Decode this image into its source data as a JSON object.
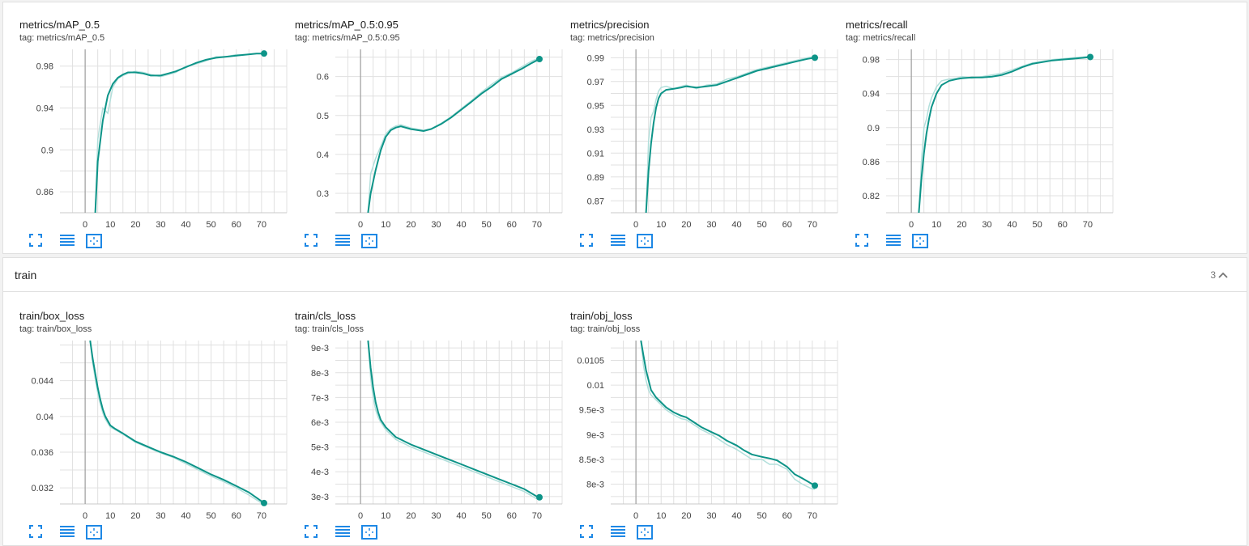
{
  "colors": {
    "accent": "#0d9488",
    "smooth_light": "#b2dfdb",
    "grid": "#e0e0e0",
    "tool_blue": "#1e88e5"
  },
  "train_group": {
    "title": "train",
    "count": "3"
  },
  "tool_icons": [
    "fit-domain-icon",
    "toggle-log-icon",
    "expand-icon"
  ],
  "chart_data": [
    {
      "type": "line",
      "title": "metrics/mAP_0.5",
      "tag": "tag: metrics/mAP_0.5",
      "x": [
        4,
        5,
        7,
        9,
        11,
        13,
        15,
        17,
        20,
        23,
        26,
        30,
        33,
        36,
        40,
        44,
        48,
        52,
        56,
        60,
        64,
        68,
        71
      ],
      "values": [
        0.84,
        0.889,
        0.928,
        0.952,
        0.963,
        0.969,
        0.972,
        0.974,
        0.974,
        0.973,
        0.971,
        0.971,
        0.973,
        0.975,
        0.979,
        0.983,
        0.986,
        0.988,
        0.989,
        0.99,
        0.991,
        0.992,
        0.992
      ],
      "raw": [
        0.84,
        0.91,
        0.94,
        0.935,
        0.96,
        0.968,
        0.971,
        0.973,
        0.975,
        0.974,
        0.972,
        0.97,
        0.972,
        0.974,
        0.98,
        0.982,
        0.985,
        0.989,
        0.989,
        0.991,
        0.991,
        0.992,
        0.992
      ],
      "ylim": [
        0.84,
        0.996
      ],
      "xlim": [
        -10,
        80
      ],
      "yticks": [
        0.86,
        0.9,
        0.94,
        0.98
      ],
      "yticklabels": [
        "0.86",
        "0.9",
        "0.94",
        "0.98"
      ],
      "xticks": [
        0,
        10,
        20,
        30,
        40,
        50,
        60,
        70
      ],
      "grid": true
    },
    {
      "type": "line",
      "title": "metrics/mAP_0.5:0.95",
      "tag": "tag: metrics/mAP_0.5:0.95",
      "x": [
        3,
        4,
        6,
        8,
        10,
        12,
        14,
        16,
        20,
        25,
        28,
        32,
        36,
        40,
        44,
        48,
        52,
        56,
        60,
        64,
        68,
        71
      ],
      "values": [
        0.25,
        0.3,
        0.36,
        0.41,
        0.445,
        0.462,
        0.469,
        0.472,
        0.465,
        0.46,
        0.465,
        0.478,
        0.495,
        0.515,
        0.535,
        0.556,
        0.574,
        0.594,
        0.607,
        0.62,
        0.635,
        0.645
      ],
      "raw": [
        0.25,
        0.35,
        0.39,
        0.42,
        0.452,
        0.466,
        0.473,
        0.476,
        0.468,
        0.462,
        0.466,
        0.48,
        0.497,
        0.518,
        0.538,
        0.56,
        0.58,
        0.598,
        0.61,
        0.625,
        0.64,
        0.648
      ],
      "ylim": [
        0.25,
        0.67
      ],
      "xlim": [
        -10,
        80
      ],
      "yticks": [
        0.3,
        0.4,
        0.5,
        0.6
      ],
      "yticklabels": [
        "0.3",
        "0.4",
        "0.5",
        "0.6"
      ],
      "xticks": [
        0,
        10,
        20,
        30,
        40,
        50,
        60,
        70
      ],
      "grid": true
    },
    {
      "type": "line",
      "title": "metrics/precision",
      "tag": "tag: metrics/precision",
      "x": [
        4,
        5,
        6,
        7,
        8,
        9,
        10,
        12,
        15,
        18,
        20,
        24,
        28,
        32,
        36,
        40,
        44,
        48,
        52,
        56,
        60,
        64,
        68,
        71
      ],
      "values": [
        0.86,
        0.895,
        0.918,
        0.935,
        0.948,
        0.956,
        0.96,
        0.963,
        0.964,
        0.965,
        0.966,
        0.965,
        0.966,
        0.967,
        0.97,
        0.973,
        0.976,
        0.979,
        0.981,
        0.983,
        0.985,
        0.987,
        0.989,
        0.99
      ],
      "raw": [
        0.86,
        0.92,
        0.94,
        0.945,
        0.955,
        0.962,
        0.965,
        0.966,
        0.964,
        0.966,
        0.967,
        0.964,
        0.967,
        0.968,
        0.972,
        0.974,
        0.977,
        0.98,
        0.982,
        0.984,
        0.986,
        0.988,
        0.99,
        0.991
      ],
      "ylim": [
        0.86,
        0.997
      ],
      "xlim": [
        -10,
        80
      ],
      "yticks": [
        0.87,
        0.89,
        0.91,
        0.93,
        0.95,
        0.97,
        0.99
      ],
      "yticklabels": [
        "0.87",
        "0.89",
        "0.91",
        "0.93",
        "0.95",
        "0.97",
        "0.99"
      ],
      "xticks": [
        0,
        10,
        20,
        30,
        40,
        50,
        60,
        70
      ],
      "grid": true
    },
    {
      "type": "line",
      "title": "metrics/recall",
      "tag": "tag: metrics/recall",
      "x": [
        3,
        4,
        5,
        6,
        7,
        8,
        10,
        12,
        15,
        18,
        20,
        24,
        28,
        32,
        36,
        40,
        44,
        48,
        52,
        56,
        60,
        64,
        68,
        71
      ],
      "values": [
        0.8,
        0.84,
        0.87,
        0.893,
        0.91,
        0.924,
        0.94,
        0.95,
        0.955,
        0.957,
        0.958,
        0.959,
        0.959,
        0.96,
        0.962,
        0.966,
        0.971,
        0.975,
        0.977,
        0.979,
        0.98,
        0.981,
        0.982,
        0.983
      ],
      "raw": [
        0.8,
        0.86,
        0.9,
        0.91,
        0.925,
        0.935,
        0.948,
        0.955,
        0.957,
        0.958,
        0.96,
        0.958,
        0.96,
        0.962,
        0.964,
        0.968,
        0.972,
        0.976,
        0.978,
        0.98,
        0.981,
        0.982,
        0.983,
        0.984
      ],
      "ylim": [
        0.8,
        0.992
      ],
      "xlim": [
        -10,
        80
      ],
      "yticks": [
        0.82,
        0.86,
        0.9,
        0.94,
        0.98
      ],
      "yticklabels": [
        "0.82",
        "0.86",
        "0.9",
        "0.94",
        "0.98"
      ],
      "xticks": [
        0,
        10,
        20,
        30,
        40,
        50,
        60,
        70
      ],
      "grid": true
    },
    {
      "type": "line",
      "title": "train/box_loss",
      "tag": "tag: train/box_loss",
      "x": [
        2,
        3,
        4,
        5,
        6,
        7,
        8,
        10,
        12,
        15,
        20,
        25,
        30,
        35,
        40,
        45,
        50,
        55,
        60,
        65,
        70,
        71
      ],
      "values": [
        0.0485,
        0.0465,
        0.0448,
        0.0432,
        0.0419,
        0.0408,
        0.04,
        0.039,
        0.0386,
        0.0381,
        0.0372,
        0.0366,
        0.036,
        0.0355,
        0.0349,
        0.0342,
        0.0335,
        0.0329,
        0.0322,
        0.0315,
        0.0305,
        0.0303
      ],
      "raw": [
        0.0485,
        0.046,
        0.0442,
        0.0426,
        0.0414,
        0.0404,
        0.0397,
        0.0388,
        0.0385,
        0.038,
        0.0371,
        0.0365,
        0.0359,
        0.0354,
        0.0347,
        0.034,
        0.0333,
        0.0327,
        0.032,
        0.0312,
        0.0303,
        0.0302
      ],
      "ylim": [
        0.0302,
        0.0485
      ],
      "xlim": [
        -10,
        80
      ],
      "yticks": [
        0.032,
        0.036,
        0.04,
        0.044
      ],
      "yticklabels": [
        "0.032",
        "0.036",
        "0.04",
        "0.044"
      ],
      "xticks": [
        0,
        10,
        20,
        30,
        40,
        50,
        60,
        70
      ],
      "grid": true
    },
    {
      "type": "line",
      "title": "train/cls_loss",
      "tag": "tag: train/cls_loss",
      "x": [
        3,
        4,
        5,
        6,
        7,
        8,
        10,
        12,
        14,
        16,
        18,
        20,
        25,
        30,
        35,
        40,
        45,
        50,
        55,
        60,
        65,
        70,
        71
      ],
      "values": [
        0.0093,
        0.0082,
        0.0074,
        0.0068,
        0.0064,
        0.0061,
        0.0058,
        0.0056,
        0.0054,
        0.0053,
        0.0052,
        0.0051,
        0.0049,
        0.0047,
        0.0045,
        0.0043,
        0.0041,
        0.0039,
        0.0037,
        0.0035,
        0.0033,
        0.003,
        0.00297
      ],
      "raw": [
        0.0093,
        0.0078,
        0.007,
        0.0065,
        0.0062,
        0.006,
        0.0057,
        0.0055,
        0.0053,
        0.0052,
        0.0051,
        0.005,
        0.0048,
        0.0046,
        0.0044,
        0.0042,
        0.004,
        0.0038,
        0.0036,
        0.0034,
        0.0032,
        0.0029,
        0.00295
      ],
      "ylim": [
        0.0027,
        0.0093
      ],
      "xlim": [
        -10,
        80
      ],
      "yticks": [
        0.003,
        0.004,
        0.005,
        0.006,
        0.007,
        0.008,
        0.009
      ],
      "yticklabels": [
        "3e-3",
        "4e-3",
        "5e-3",
        "6e-3",
        "7e-3",
        "8e-3",
        "9e-3"
      ],
      "xticks": [
        0,
        10,
        20,
        30,
        40,
        50,
        60,
        70
      ],
      "grid": true
    },
    {
      "type": "line",
      "title": "train/obj_loss",
      "tag": "tag: train/obj_loss",
      "x": [
        2,
        3,
        4,
        5,
        6,
        8,
        10,
        12,
        15,
        18,
        20,
        23,
        26,
        30,
        33,
        36,
        40,
        43,
        46,
        50,
        53,
        56,
        60,
        63,
        66,
        70,
        71
      ],
      "values": [
        0.0109,
        0.0106,
        0.0103,
        0.0101,
        0.0099,
        0.00975,
        0.00965,
        0.00955,
        0.00945,
        0.00938,
        0.00935,
        0.00925,
        0.00915,
        0.00905,
        0.00898,
        0.00888,
        0.00878,
        0.00868,
        0.0086,
        0.00855,
        0.00852,
        0.00848,
        0.00835,
        0.0082,
        0.00812,
        0.008,
        0.00797
      ],
      "raw": [
        0.0109,
        0.0104,
        0.0101,
        0.0099,
        0.0098,
        0.0097,
        0.0096,
        0.0095,
        0.0094,
        0.00932,
        0.0093,
        0.0092,
        0.0091,
        0.009,
        0.0089,
        0.0088,
        0.0087,
        0.0086,
        0.0085,
        0.0085,
        0.0084,
        0.0084,
        0.0083,
        0.0081,
        0.008,
        0.0079,
        0.0079
      ],
      "ylim": [
        0.0076,
        0.0109
      ],
      "xlim": [
        -10,
        80
      ],
      "yticks": [
        0.008,
        0.0085,
        0.009,
        0.0095,
        0.01,
        0.0105
      ],
      "yticklabels": [
        "8e-3",
        "8.5e-3",
        "9e-3",
        "9.5e-3",
        "0.01",
        "0.0105"
      ],
      "xticks": [
        0,
        10,
        20,
        30,
        40,
        50,
        60,
        70
      ],
      "grid": true
    }
  ]
}
